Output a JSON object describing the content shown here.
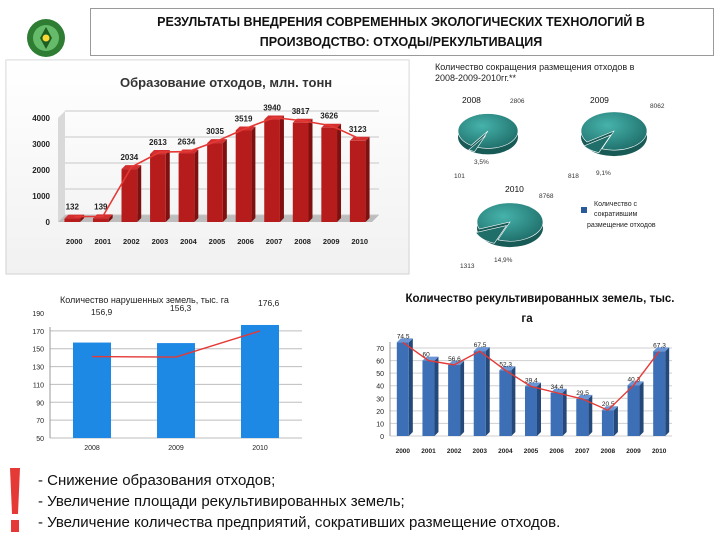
{
  "header": {
    "title_line1": "РЕЗУЛЬТАТЫ ВНЕДРЕНИЯ СОВРЕМЕННЫХ ЭКОЛОГИЧЕСКИХ ТЕХНОЛОГИЙ В",
    "title_line2": "ПРОИЗВОДСТВО: ОТХОДЫ/РЕКУЛЬТИВАЦИЯ"
  },
  "logo": {
    "icon": "emblem-icon",
    "color": "#2e7d32"
  },
  "pie_section": {
    "title_line1": "Количество сокращения размещения отходов в",
    "title_line2": "2008-2009-2010гг.**",
    "legend_label_line1": "Количество с",
    "legend_label_line2": "сократившим",
    "legend_label_line3": "размещение отходов"
  },
  "chart_data": [
    {
      "type": "bar",
      "title": "Образование отходов, млн. тонн",
      "categories": [
        "2000",
        "2001",
        "2002",
        "2003",
        "2004",
        "2005",
        "2006",
        "2007",
        "2008",
        "2009",
        "2010"
      ],
      "values": [
        132,
        139,
        2034,
        2613,
        2634,
        3035,
        3519,
        3940,
        3817,
        3626,
        3123
      ],
      "value_labels": [
        "132",
        "139",
        "2034",
        "2613",
        "2634",
        "3035",
        "3519",
        "3940",
        "3817",
        "3626",
        "3123"
      ],
      "ytick_labels": [
        "0",
        "1000",
        "2000",
        "3000",
        "4000"
      ],
      "ylim": [
        0,
        4000
      ],
      "trend_line": true,
      "colors": {
        "bar": "#b71c1c",
        "line": "#e53935"
      }
    },
    {
      "type": "pie",
      "year": "2008",
      "slices": [
        {
          "value": 2806
        },
        {
          "value": 101
        }
      ],
      "value_labels": [
        "2806",
        "101",
        "3,5%"
      ],
      "colors": [
        "#2a8f8a",
        "#1f6e6a"
      ]
    },
    {
      "type": "pie",
      "year": "2009",
      "slices": [
        {
          "value": 8062
        },
        {
          "value": 818
        }
      ],
      "value_labels": [
        "8062",
        "818",
        "9,1%"
      ],
      "colors": [
        "#2a8f8a",
        "#1f6e6a"
      ]
    },
    {
      "type": "pie",
      "year": "2010",
      "slices": [
        {
          "value": 8768
        },
        {
          "value": 1313
        }
      ],
      "value_labels": [
        "8768",
        "1313",
        "14,9%"
      ],
      "colors": [
        "#2a8f8a",
        "#1f6e6a"
      ]
    },
    {
      "type": "bar",
      "title": "Количество нарушенных земель, тыс. га",
      "categories": [
        "2008",
        "2009",
        "2010"
      ],
      "values": [
        156.9,
        156.3,
        176.6
      ],
      "value_labels": [
        "156,9",
        "156,3",
        "176,6"
      ],
      "ytick_labels": [
        "50",
        "70",
        "90",
        "110",
        "130",
        "150",
        "170",
        "190"
      ],
      "ylim": [
        50,
        190
      ],
      "trend_line": true,
      "colors": {
        "bar": "#1e88e5",
        "line": "#e53935"
      }
    },
    {
      "type": "bar",
      "title_line1": "Количество рекультивированных земель, тыс.",
      "title_line2": "га",
      "categories": [
        "2000",
        "2001",
        "2002",
        "2003",
        "2004",
        "2005",
        "2006",
        "2007",
        "2008",
        "2009",
        "2010"
      ],
      "values": [
        74.5,
        60,
        56.6,
        67.5,
        52.3,
        39.4,
        34.4,
        29.5,
        20.5,
        40.3,
        67.3
      ],
      "value_labels": [
        "74,5",
        "60",
        "56,6",
        "67,5",
        "52,3",
        "39,4",
        "34,4",
        "29,5",
        "20,5",
        "40,3",
        "67,3"
      ],
      "ytick_labels": [
        "0",
        "10",
        "20",
        "30",
        "40",
        "50",
        "60",
        "70"
      ],
      "ylim": [
        0,
        75
      ],
      "trend_line": true,
      "colors": {
        "bar": "#3d6fb6",
        "line": "#e53935"
      }
    }
  ],
  "bullets": [
    "- Снижение образования отходов;",
    "- Увеличение площади рекультивированных земель;",
    "- Увеличение количества предприятий, сокративших размещение отходов."
  ],
  "exclamation": {
    "color": "#e53935"
  }
}
